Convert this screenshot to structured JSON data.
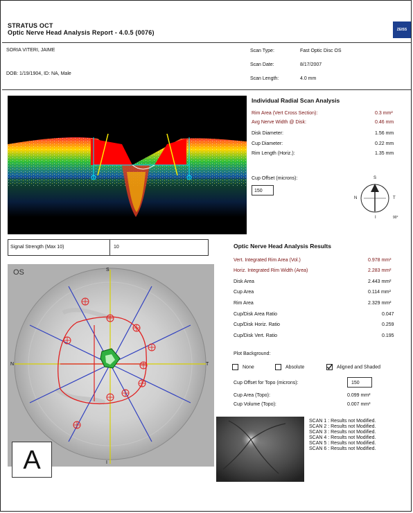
{
  "header": {
    "product": "STRATUS OCT",
    "report_title": "Optic Nerve Head Analysis Report - 4.0.5 (0076)",
    "logo_text": "ZEISS"
  },
  "patient": {
    "name": "SORIA VITERI, JAIME",
    "dob_line": "DOB: 1/19/1904, ID: NA, Male"
  },
  "scan_info": [
    {
      "label": "Scan Type:",
      "value": "Fast Optic Disc  OS"
    },
    {
      "label": "Scan Date:",
      "value": "8/17/2007"
    },
    {
      "label": "Scan Length:",
      "value": "4.0 mm"
    }
  ],
  "radial": {
    "title": "Individual Radial Scan Analysis",
    "rows": [
      {
        "label": "Rim Area (Vert Cross Section):",
        "value": "0.3 mm²",
        "red": true
      },
      {
        "label": "Avg Nerve Width @ Disk:",
        "value": "0.46 mm",
        "red": true
      },
      {
        "label": "Disk Diameter:",
        "value": "1.56 mm",
        "red": false
      },
      {
        "label": "Cup Diameter:",
        "value": "0.22 mm",
        "red": false
      },
      {
        "label": "Rim Length (Horiz.):",
        "value": "1.35 mm",
        "red": false
      }
    ],
    "cup_offset_label": "Cup Offset (microns):",
    "cup_offset_value": "150"
  },
  "compass": {
    "s": "S",
    "n": "N",
    "t": "T",
    "i": "I",
    "sub": "90°"
  },
  "signal": {
    "label": "Signal Strength (Max 10)",
    "value": "10"
  },
  "onh": {
    "title": "Optic Nerve Head Analysis Results",
    "rows": [
      {
        "label": "Vert. Integrated Rim Area (Vol.)",
        "value": "0.978 mm³",
        "red": true
      },
      {
        "label": "Horiz. Integrated Rim Width (Area)",
        "value": "2.283 mm²",
        "red": true
      },
      {
        "label": "Disk Area",
        "value": "2.443 mm²",
        "red": false
      },
      {
        "label": "Cup Area",
        "value": "0.114 mm²",
        "red": false
      },
      {
        "label": "Rim Area",
        "value": "2.329 mm²",
        "red": false
      },
      {
        "label": "Cup/Disk Area Ratio",
        "value": "0.047",
        "red": false
      },
      {
        "label": "Cup/Disk Horiz. Ratio",
        "value": "0.259",
        "red": false
      },
      {
        "label": "Cup/Disk Vert. Ratio",
        "value": "0.195",
        "red": false
      }
    ]
  },
  "plot_background": {
    "label": "Plot Background:",
    "options": [
      {
        "label": "None",
        "checked": false
      },
      {
        "label": "Absolute",
        "checked": false
      },
      {
        "label": "Aligned and Shaded",
        "checked": true
      }
    ]
  },
  "topo": {
    "offset_label": "Cup Offset for Topo (microns):",
    "offset_value": "150",
    "rows": [
      {
        "label": "Cup Area (Topo):",
        "value": "0.099 mm²"
      },
      {
        "label": "Cup Volume (Topo):",
        "value": "0.007 mm³"
      }
    ]
  },
  "topo_map": {
    "eye": "OS",
    "s": "S",
    "n": "N",
    "t": "T",
    "i": "I",
    "panel_letter": "A"
  },
  "scans": [
    "SCAN 1 : Results not Modified.",
    "SCAN 2 : Results not Modified.",
    "SCAN 3 : Results not Modified.",
    "SCAN 4 : Results not Modified.",
    "SCAN 5 : Results not Modified.",
    "SCAN 6 : Results not Modified."
  ]
}
